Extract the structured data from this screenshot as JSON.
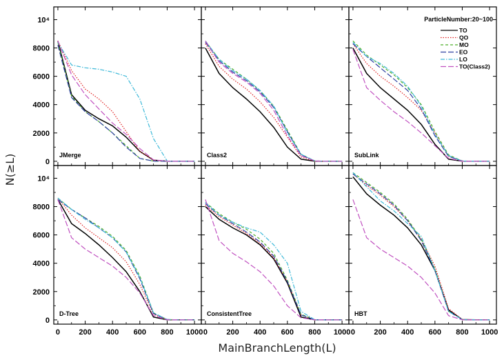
{
  "chart_data": {
    "type": "line",
    "layout": "2x3 panel grid",
    "xlabel": "MainBranchLength(L)",
    "ylabel": "N(≥L)",
    "xlim": [
      -30,
      1050
    ],
    "ylim": [
      -300,
      10900
    ],
    "x_ticks": [
      0,
      200,
      400,
      600,
      800,
      1000
    ],
    "x_tick_labels": [
      "0",
      "200",
      "400",
      "600",
      "800",
      "1000"
    ],
    "y_ticks": [
      0,
      2000,
      4000,
      6000,
      8000,
      10000
    ],
    "y_tick_labels": [
      "0",
      "2000",
      "4000",
      "6000",
      "8000",
      "10⁴"
    ],
    "legend": {
      "title": "ParticleNumber:20~100",
      "position": "top-right panel, upper right",
      "entries": [
        {
          "name": "TO",
          "color": "#000000",
          "dash": "solid"
        },
        {
          "name": "QO",
          "color": "#e02020",
          "dash": "dotted"
        },
        {
          "name": "MO",
          "color": "#4caf28",
          "dash": "dashed"
        },
        {
          "name": "EO",
          "color": "#2b3ea0",
          "dash": "longdash"
        },
        {
          "name": "LO",
          "color": "#3bb8d8",
          "dash": "dashdot"
        },
        {
          "name": "TO(Class2)",
          "color": "#c050c0",
          "dash": "longdash"
        }
      ]
    },
    "x": [
      0,
      100,
      200,
      300,
      400,
      500,
      600,
      700,
      800,
      900,
      1000
    ],
    "panels": [
      {
        "label": "JMerge",
        "series": [
          {
            "name": "TO",
            "values": [
              8500,
              4700,
              3600,
              3000,
              2500,
              1700,
              700,
              80,
              5,
              0,
              0
            ]
          },
          {
            "name": "QO",
            "values": [
              8500,
              6400,
              5100,
              4400,
              3500,
              2100,
              700,
              80,
              5,
              0,
              0
            ]
          },
          {
            "name": "MO",
            "values": [
              8400,
              4600,
              3500,
              2800,
              2000,
              1100,
              200,
              10,
              0,
              0,
              0
            ]
          },
          {
            "name": "EO",
            "values": [
              8200,
              4500,
              3500,
              2800,
              2000,
              1000,
              200,
              10,
              0,
              0,
              0
            ]
          },
          {
            "name": "LO",
            "values": [
              8400,
              6800,
              6600,
              6500,
              6300,
              6000,
              4400,
              1600,
              10,
              0,
              0
            ]
          },
          {
            "name": "TO(Class2)",
            "values": [
              8500,
              6100,
              4700,
              3700,
              2700,
              1900,
              900,
              100,
              5,
              0,
              0
            ]
          }
        ]
      },
      {
        "label": "Class2",
        "series": [
          {
            "name": "TO",
            "values": [
              8000,
              6200,
              5200,
              4400,
              3500,
              2400,
              1000,
              150,
              5,
              0,
              0
            ]
          },
          {
            "name": "QO",
            "values": [
              8300,
              6700,
              5800,
              5100,
              4200,
              3100,
              1700,
              300,
              10,
              0,
              0
            ]
          },
          {
            "name": "MO",
            "values": [
              8500,
              7200,
              6500,
              5800,
              5000,
              3900,
              2200,
              500,
              20,
              0,
              0
            ]
          },
          {
            "name": "EO",
            "values": [
              8400,
              7100,
              6300,
              5700,
              4900,
              3800,
              2100,
              450,
              20,
              0,
              0
            ]
          },
          {
            "name": "LO",
            "values": [
              8500,
              7200,
              6400,
              5800,
              5000,
              3900,
              2000,
              500,
              20,
              0,
              0
            ]
          },
          {
            "name": "TO(Class2)",
            "values": [
              8500,
              7000,
              6200,
              5600,
              4800,
              3600,
              1800,
              400,
              15,
              0,
              0
            ]
          }
        ]
      },
      {
        "label": "SubLink",
        "series": [
          {
            "name": "TO",
            "values": [
              8000,
              6200,
              5200,
              4400,
              3600,
              2600,
              1200,
              150,
              5,
              0,
              0
            ]
          },
          {
            "name": "QO",
            "values": [
              8300,
              6900,
              6000,
              5300,
              4500,
              3600,
              2000,
              350,
              10,
              0,
              0
            ]
          },
          {
            "name": "MO",
            "values": [
              8500,
              7500,
              6800,
              6100,
              5200,
              4000,
              2100,
              450,
              20,
              0,
              0
            ]
          },
          {
            "name": "EO",
            "values": [
              8300,
              7400,
              6600,
              5800,
              5000,
              3700,
              1800,
              350,
              15,
              0,
              0
            ]
          },
          {
            "name": "LO",
            "values": [
              8400,
              7400,
              6900,
              6200,
              5300,
              3900,
              1900,
              400,
              15,
              0,
              0
            ]
          },
          {
            "name": "TO(Class2)",
            "values": [
              7900,
              5200,
              4300,
              3500,
              2800,
              2000,
              1100,
              200,
              5,
              0,
              0
            ]
          }
        ]
      },
      {
        "label": "D-Tree",
        "series": [
          {
            "name": "TO",
            "values": [
              8500,
              6800,
              6100,
              5300,
              4400,
              3400,
              2000,
              200,
              5,
              0,
              0
            ]
          },
          {
            "name": "QO",
            "values": [
              8600,
              7400,
              6500,
              5800,
              5100,
              4100,
              2500,
              400,
              10,
              0,
              0
            ]
          },
          {
            "name": "MO",
            "values": [
              8600,
              7800,
              7200,
              6600,
              5900,
              4900,
              3100,
              500,
              20,
              0,
              0
            ]
          },
          {
            "name": "EO",
            "values": [
              8500,
              7800,
              7200,
              6500,
              5800,
              4800,
              2900,
              450,
              20,
              0,
              0
            ]
          },
          {
            "name": "LO",
            "values": [
              8600,
              7800,
              7100,
              6500,
              5800,
              4800,
              3000,
              500,
              20,
              0,
              0
            ]
          },
          {
            "name": "TO(Class2)",
            "values": [
              8500,
              5800,
              5000,
              4400,
              3800,
              3000,
              1900,
              300,
              5,
              0,
              0
            ]
          }
        ]
      },
      {
        "label": "ConsistentTree",
        "series": [
          {
            "name": "TO",
            "values": [
              8000,
              7100,
              6500,
              6000,
              5300,
              4300,
              2600,
              200,
              5,
              0,
              0
            ]
          },
          {
            "name": "QO",
            "values": [
              8100,
              7300,
              6700,
              6100,
              5400,
              4400,
              2700,
              350,
              10,
              0,
              0
            ]
          },
          {
            "name": "MO",
            "values": [
              8300,
              7500,
              6900,
              6400,
              5700,
              4700,
              2800,
              400,
              10,
              0,
              0
            ]
          },
          {
            "name": "EO",
            "values": [
              8200,
              7400,
              6800,
              6200,
              5500,
              4500,
              2700,
              350,
              10,
              0,
              0
            ]
          },
          {
            "name": "LO",
            "values": [
              8300,
              7400,
              6900,
              6500,
              6200,
              5300,
              4000,
              600,
              10,
              0,
              0
            ]
          },
          {
            "name": "TO(Class2)",
            "values": [
              8500,
              5600,
              4700,
              4100,
              3400,
              2400,
              1000,
              150,
              5,
              0,
              0
            ]
          }
        ]
      },
      {
        "label": "HBT",
        "series": [
          {
            "name": "TO",
            "values": [
              10100,
              8900,
              8100,
              7400,
              6500,
              5300,
              3500,
              700,
              20,
              0,
              0
            ]
          },
          {
            "name": "QO",
            "values": [
              10300,
              9500,
              8800,
              8000,
              7000,
              5700,
              3800,
              800,
              20,
              0,
              0
            ]
          },
          {
            "name": "MO",
            "values": [
              10400,
              9700,
              9000,
              8200,
              7100,
              5700,
              3600,
              600,
              20,
              0,
              0
            ]
          },
          {
            "name": "EO",
            "values": [
              10300,
              9600,
              8900,
              8100,
              7000,
              5600,
              3500,
              600,
              20,
              0,
              0
            ]
          },
          {
            "name": "LO",
            "values": [
              10400,
              9400,
              8400,
              7700,
              6800,
              5900,
              3500,
              600,
              20,
              0,
              0
            ]
          },
          {
            "name": "TO(Class2)",
            "values": [
              8500,
              5800,
              5000,
              4400,
              3800,
              3000,
              1900,
              300,
              5,
              0,
              0
            ]
          }
        ]
      }
    ]
  }
}
